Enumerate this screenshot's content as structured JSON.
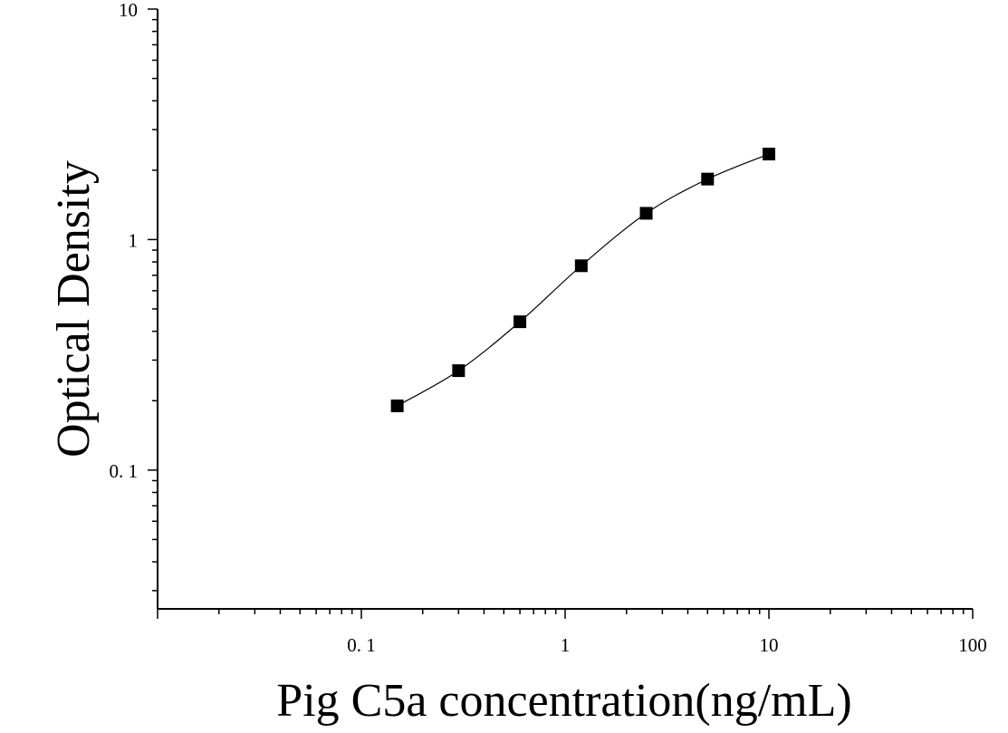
{
  "chart_data": {
    "type": "scatter",
    "title": "",
    "xlabel": "Pig C5a concentration(ng/mL)",
    "ylabel": "Optical Density",
    "xscale": "log",
    "yscale": "log",
    "xlim": [
      0.01,
      100
    ],
    "ylim": [
      0.025,
      10
    ],
    "x_ticks": [
      {
        "value": 0.1,
        "label": "0. 1"
      },
      {
        "value": 1,
        "label": "1"
      },
      {
        "value": 10,
        "label": "10"
      },
      {
        "value": 100,
        "label": "100"
      }
    ],
    "y_ticks": [
      {
        "value": 0.1,
        "label": "0. 1"
      },
      {
        "value": 1,
        "label": "1"
      },
      {
        "value": 10,
        "label": "10"
      }
    ],
    "grid": false,
    "legend": "none",
    "fit_curve": true,
    "marker": "square",
    "color": "#000000",
    "series": [
      {
        "x": [
          0.15,
          0.3,
          0.6,
          1.2,
          2.5,
          5,
          10
        ],
        "y": [
          0.19,
          0.27,
          0.44,
          0.77,
          1.3,
          1.83,
          2.35
        ]
      }
    ]
  }
}
